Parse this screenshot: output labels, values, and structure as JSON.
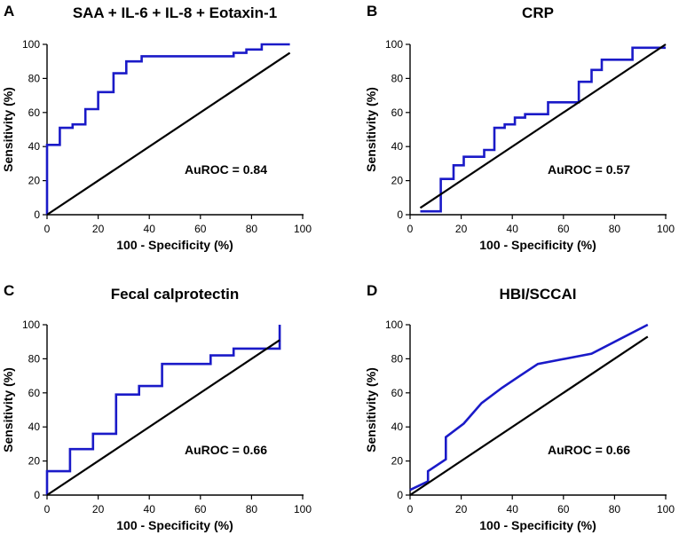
{
  "figure": {
    "colors": {
      "roc": "#1a1ac8",
      "reference": "#000000"
    }
  },
  "chart_data": [
    {
      "type": "line",
      "panel": "A",
      "title": "SAA + IL-6 + IL-8 + Eotaxin-1",
      "xlabel": "100 - Specificity (%)",
      "ylabel": "Sensitivity (%)",
      "xlim": [
        0,
        100
      ],
      "ylim": [
        0,
        100
      ],
      "xticks": [
        0,
        20,
        40,
        60,
        80,
        100
      ],
      "yticks": [
        0,
        20,
        40,
        60,
        80,
        100
      ],
      "annotation": "AuROC = 0.84",
      "series": [
        {
          "name": "ROC",
          "x": [
            0,
            0,
            5,
            5,
            10,
            10,
            15,
            15,
            20,
            20,
            26,
            26,
            31,
            31,
            37,
            37,
            73,
            73,
            78,
            78,
            84,
            84,
            95
          ],
          "y": [
            0,
            41,
            41,
            51,
            51,
            53,
            53,
            62,
            62,
            72,
            72,
            83,
            83,
            90,
            90,
            93,
            93,
            95,
            95,
            97,
            97,
            100,
            100
          ]
        },
        {
          "name": "Reference",
          "x": [
            0,
            95
          ],
          "y": [
            0,
            95
          ]
        }
      ]
    },
    {
      "type": "line",
      "panel": "B",
      "title": "CRP",
      "xlabel": "100 - Specificity (%)",
      "ylabel": "Sensitivity (%)",
      "xlim": [
        0,
        100
      ],
      "ylim": [
        0,
        100
      ],
      "xticks": [
        0,
        20,
        40,
        60,
        80,
        100
      ],
      "yticks": [
        0,
        20,
        40,
        60,
        80,
        100
      ],
      "annotation": "AuROC = 0.57",
      "series": [
        {
          "name": "ROC",
          "x": [
            4,
            12,
            12,
            17,
            17,
            21,
            21,
            29,
            29,
            33,
            33,
            37,
            37,
            41,
            41,
            45,
            45,
            54,
            54,
            66,
            66,
            71,
            71,
            75,
            75,
            87,
            87,
            100
          ],
          "y": [
            2,
            2,
            21,
            21,
            29,
            29,
            34,
            34,
            38,
            38,
            51,
            51,
            53,
            53,
            57,
            57,
            59,
            59,
            66,
            66,
            78,
            78,
            85,
            85,
            91,
            91,
            98,
            98
          ]
        },
        {
          "name": "Reference",
          "x": [
            4,
            100
          ],
          "y": [
            4,
            100
          ]
        }
      ]
    },
    {
      "type": "line",
      "panel": "C",
      "title": "Fecal calprotectin",
      "xlabel": "100 - Specificity (%)",
      "ylabel": "Sensitivity (%)",
      "xlim": [
        0,
        100
      ],
      "ylim": [
        0,
        100
      ],
      "xticks": [
        0,
        20,
        40,
        60,
        80,
        100
      ],
      "yticks": [
        0,
        20,
        40,
        60,
        80,
        100
      ],
      "annotation": "AuROC = 0.66",
      "series": [
        {
          "name": "ROC",
          "x": [
            0,
            0,
            9,
            9,
            18,
            18,
            27,
            27,
            36,
            36,
            45,
            45,
            64,
            64,
            73,
            73,
            91,
            91
          ],
          "y": [
            0,
            14,
            14,
            27,
            27,
            36,
            36,
            59,
            59,
            64,
            64,
            77,
            77,
            82,
            82,
            86,
            86,
            100
          ]
        },
        {
          "name": "Reference",
          "x": [
            0,
            91
          ],
          "y": [
            0,
            91
          ]
        }
      ]
    },
    {
      "type": "line",
      "panel": "D",
      "title": "HBI/SCCAI",
      "xlabel": "100 - Specificity (%)",
      "ylabel": "Sensitivity (%)",
      "xlim": [
        0,
        100
      ],
      "ylim": [
        0,
        100
      ],
      "xticks": [
        0,
        20,
        40,
        60,
        80,
        100
      ],
      "yticks": [
        0,
        20,
        40,
        60,
        80,
        100
      ],
      "annotation": "AuROC = 0.66",
      "series": [
        {
          "name": "ROC",
          "x": [
            0,
            7,
            7,
            14,
            14,
            21,
            28,
            36,
            43,
            50,
            71,
            93
          ],
          "y": [
            3,
            8,
            14,
            21,
            34,
            42,
            54,
            63,
            70,
            77,
            83,
            100
          ]
        },
        {
          "name": "Reference",
          "x": [
            0,
            93
          ],
          "y": [
            0,
            93
          ]
        }
      ]
    }
  ]
}
